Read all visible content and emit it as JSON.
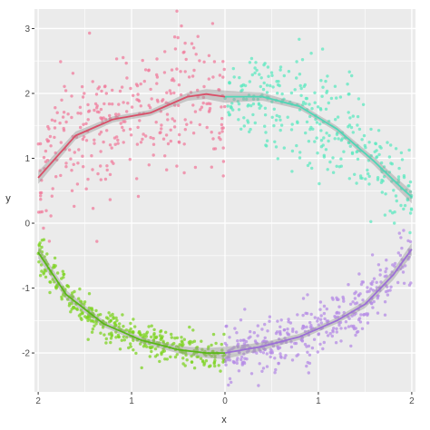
{
  "chart_data": {
    "type": "scatter",
    "xlabel": "x",
    "ylabel": "y",
    "x_tick_labels": [
      "2",
      "1",
      "0",
      "1",
      "2"
    ],
    "y_tick_labels": [
      "3",
      "2",
      "1",
      "0",
      "-1",
      "-2"
    ],
    "y_ticks": [
      3,
      2,
      1,
      0,
      -1,
      -2
    ],
    "x_range": [
      -2.04,
      2.04
    ],
    "ylim": [
      -2.6,
      3.3
    ],
    "grid": true,
    "panel_background": "#ebebeb",
    "grid_color": "#ffffff",
    "legend": "none",
    "series": [
      {
        "color": "#f07c9c",
        "line_color": "#d94f68",
        "x": [
          -2.0,
          -1.6,
          -1.2,
          -0.8,
          -0.4,
          -0.2,
          0.0
        ],
        "y": [
          0.7,
          1.35,
          1.6,
          1.7,
          1.95,
          1.99,
          1.95
        ],
        "scatter_sd": 0.55,
        "n_points": 330
      },
      {
        "color": "#5ee8c0",
        "line_color": "#4fd6b6",
        "x": [
          0.0,
          0.4,
          0.8,
          1.2,
          1.6,
          1.85,
          2.0
        ],
        "y": [
          1.95,
          1.95,
          1.8,
          1.45,
          0.95,
          0.6,
          0.4
        ],
        "scatter_sd": 0.4,
        "n_points": 330
      },
      {
        "color": "#7ed321",
        "line_color": "#5ab818",
        "x": [
          -2.0,
          -1.7,
          -1.3,
          -0.9,
          -0.5,
          -0.2,
          0.0
        ],
        "y": [
          -0.45,
          -1.1,
          -1.55,
          -1.8,
          -1.95,
          -2.0,
          -2.0
        ],
        "scatter_sd": 0.13,
        "n_points": 380
      },
      {
        "color": "#b58ce6",
        "line_color": "#9c6fd6",
        "x": [
          0.0,
          0.4,
          0.8,
          1.2,
          1.5,
          1.8,
          2.0
        ],
        "y": [
          -2.0,
          -1.9,
          -1.75,
          -1.5,
          -1.25,
          -0.8,
          -0.4
        ],
        "scatter_sd": 0.22,
        "n_points": 380
      }
    ]
  }
}
